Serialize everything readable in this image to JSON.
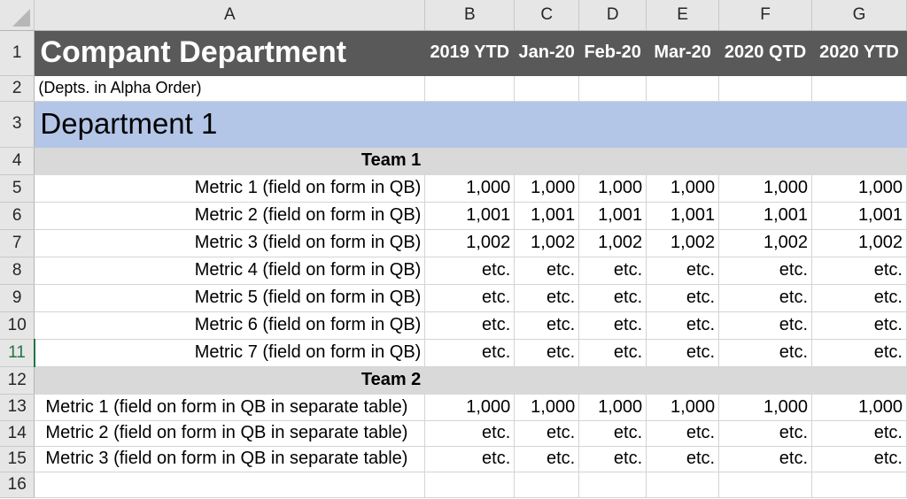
{
  "columns": [
    "A",
    "B",
    "C",
    "D",
    "E",
    "F",
    "G"
  ],
  "row_numbers": [
    "1",
    "2",
    "3",
    "4",
    "5",
    "6",
    "7",
    "8",
    "9",
    "10",
    "11",
    "12",
    "13",
    "14",
    "15",
    "16"
  ],
  "title": {
    "main": "Compant Department",
    "periods": [
      "2019 YTD",
      "Jan-20",
      "Feb-20",
      "Mar-20",
      "2020 QTD",
      "2020 YTD"
    ]
  },
  "subtitle": "(Depts. in Alpha Order)",
  "department": "Department 1",
  "teams": [
    {
      "name": "Team 1",
      "rows": [
        {
          "label": "Metric 1 (field on form in QB)",
          "values": [
            "1,000",
            "1,000",
            "1,000",
            "1,000",
            "1,000",
            "1,000"
          ]
        },
        {
          "label": "Metric 2 (field on form in QB)",
          "values": [
            "1,001",
            "1,001",
            "1,001",
            "1,001",
            "1,001",
            "1,001"
          ]
        },
        {
          "label": "Metric 3 (field on form in QB)",
          "values": [
            "1,002",
            "1,002",
            "1,002",
            "1,002",
            "1,002",
            "1,002"
          ]
        },
        {
          "label": "Metric 4 (field on form in QB)",
          "values": [
            "etc.",
            "etc.",
            "etc.",
            "etc.",
            "etc.",
            "etc."
          ]
        },
        {
          "label": "Metric 5 (field on form in QB)",
          "values": [
            "etc.",
            "etc.",
            "etc.",
            "etc.",
            "etc.",
            "etc."
          ]
        },
        {
          "label": "Metric 6 (field on form in QB)",
          "values": [
            "etc.",
            "etc.",
            "etc.",
            "etc.",
            "etc.",
            "etc."
          ]
        },
        {
          "label": "Metric 7 (field on form in QB)",
          "values": [
            "etc.",
            "etc.",
            "etc.",
            "etc.",
            "etc.",
            "etc."
          ]
        }
      ]
    },
    {
      "name": "Team 2",
      "rows": [
        {
          "label": "Metric 1 (field on form in QB in separate table)",
          "values": [
            "1,000",
            "1,000",
            "1,000",
            "1,000",
            "1,000",
            "1,000"
          ]
        },
        {
          "label": "Metric 2 (field on form in QB in separate table)",
          "values": [
            "etc.",
            "etc.",
            "etc.",
            "etc.",
            "etc.",
            "etc."
          ]
        },
        {
          "label": "Metric 3 (field on form in QB in separate table)",
          "values": [
            "etc.",
            "etc.",
            "etc.",
            "etc.",
            "etc.",
            "etc."
          ]
        }
      ]
    }
  ],
  "colors": {
    "title_bg": "#595959",
    "dept_bg": "#b4c6e7",
    "team_bg": "#d9d9d9",
    "header_bg": "#e6e6e6",
    "selected_row": "#217346"
  }
}
